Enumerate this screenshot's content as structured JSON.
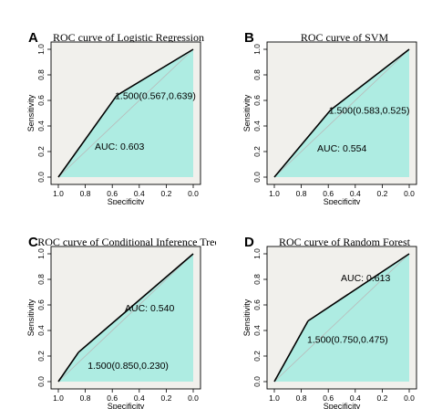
{
  "chart_data": [
    {
      "panel": "A",
      "type": "area",
      "title": "ROC curve of Logistic Regression",
      "xlabel": "Specificity",
      "ylabel": "Sensitivity",
      "x_reversed": true,
      "xlim": [
        1.0,
        0.0
      ],
      "ylim": [
        0.0,
        1.0
      ],
      "xticks": [
        "1.0",
        "0.8",
        "0.6",
        "0.4",
        "0.2",
        "0.0"
      ],
      "yticks": [
        "0.0",
        "0.2",
        "0.4",
        "0.6",
        "0.8",
        "1.0"
      ],
      "x": [
        1.0,
        0.567,
        0.0
      ],
      "y": [
        0.0,
        0.639,
        1.0
      ],
      "threshold_point": {
        "x": 0.567,
        "y": 0.639,
        "label": "1.500(0.567,0.639)"
      },
      "auc_label": "AUC: 0.603",
      "grid": false
    },
    {
      "panel": "B",
      "type": "area",
      "title": "ROC curve of SVM",
      "xlabel": "Specificity",
      "ylabel": "Sensitivity",
      "x_reversed": true,
      "xlim": [
        1.0,
        0.0
      ],
      "ylim": [
        0.0,
        1.0
      ],
      "xticks": [
        "1.0",
        "0.8",
        "0.6",
        "0.4",
        "0.2",
        "0.0"
      ],
      "yticks": [
        "0.0",
        "0.2",
        "0.4",
        "0.6",
        "0.8",
        "1.0"
      ],
      "x": [
        1.0,
        0.583,
        0.0
      ],
      "y": [
        0.0,
        0.525,
        1.0
      ],
      "threshold_point": {
        "x": 0.583,
        "y": 0.525,
        "label": "1.500(0.583,0.525)"
      },
      "auc_label": "AUC: 0.554",
      "grid": false
    },
    {
      "panel": "C",
      "type": "area",
      "title": "ROC curve of Conditional Inference Tree",
      "xlabel": "Specificity",
      "ylabel": "Sensitivity",
      "x_reversed": true,
      "xlim": [
        1.0,
        0.0
      ],
      "ylim": [
        0.0,
        1.0
      ],
      "xticks": [
        "1.0",
        "0.8",
        "0.6",
        "0.4",
        "0.2",
        "0.0"
      ],
      "yticks": [
        "0.0",
        "0.2",
        "0.4",
        "0.6",
        "0.8",
        "1.0"
      ],
      "x": [
        1.0,
        0.85,
        0.0
      ],
      "y": [
        0.0,
        0.23,
        1.0
      ],
      "threshold_point": {
        "x": 0.85,
        "y": 0.23,
        "label": "1.500(0.850,0.230)"
      },
      "auc_label": "AUC: 0.540",
      "grid": false
    },
    {
      "panel": "D",
      "type": "area",
      "title": "ROC curve of Random Forest",
      "xlabel": "Specificity",
      "ylabel": "Sensitivity",
      "x_reversed": true,
      "xlim": [
        1.0,
        0.0
      ],
      "ylim": [
        0.0,
        1.0
      ],
      "xticks": [
        "1.0",
        "0.8",
        "0.6",
        "0.4",
        "0.2",
        "0.0"
      ],
      "yticks": [
        "0.0",
        "0.2",
        "0.4",
        "0.6",
        "0.8",
        "1.0"
      ],
      "x": [
        1.0,
        0.75,
        0.0
      ],
      "y": [
        0.0,
        0.475,
        1.0
      ],
      "threshold_point": {
        "x": 0.75,
        "y": 0.475,
        "label": "1.500(0.750,0.475)"
      },
      "auc_label": "AUC: 0.613",
      "grid": false
    }
  ],
  "colors": {
    "auc_fill": "#aeece2",
    "plot_background": "#f1f0ec",
    "roc_line": "#000000",
    "diagonal": "#b9b9b9"
  }
}
